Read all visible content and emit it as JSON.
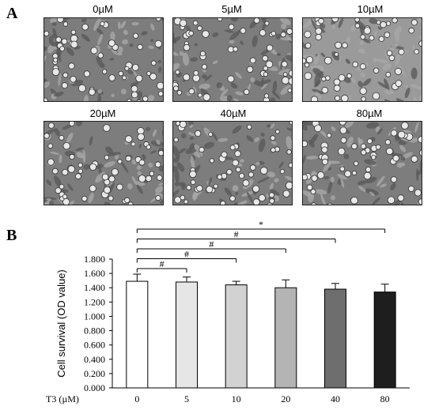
{
  "panel_a": {
    "label": "A",
    "images": [
      {
        "label": "0µM"
      },
      {
        "label": "5µM"
      },
      {
        "label": "10µM"
      },
      {
        "label": "20µM"
      },
      {
        "label": "40µM"
      },
      {
        "label": "80µM"
      }
    ]
  },
  "panel_b": {
    "label": "B"
  },
  "chart_data": {
    "type": "bar",
    "categories": [
      "0",
      "5",
      "10",
      "20",
      "40",
      "80"
    ],
    "values": [
      1.49,
      1.48,
      1.44,
      1.4,
      1.38,
      1.34
    ],
    "errors": [
      0.1,
      0.07,
      0.05,
      0.11,
      0.08,
      0.11
    ],
    "ylabel": "Cell survival (OD value)",
    "xlabel": "T3 (µM)",
    "ylim": [
      0,
      1.8
    ],
    "yticks": [
      "0.000",
      "0.200",
      "0.400",
      "0.600",
      "0.800",
      "1.000",
      "1.200",
      "1.400",
      "1.600",
      "1.800"
    ],
    "bar_fills": [
      "#ffffff",
      "#e6e6e6",
      "#d2d2d2",
      "#b4b4b4",
      "#6e6e6e",
      "#1e1e1e"
    ],
    "significance": [
      {
        "from": "0",
        "to": "5",
        "symbol": "#"
      },
      {
        "from": "0",
        "to": "10",
        "symbol": "#"
      },
      {
        "from": "0",
        "to": "20",
        "symbol": "#"
      },
      {
        "from": "0",
        "to": "40",
        "symbol": "#"
      },
      {
        "from": "0",
        "to": "80",
        "symbol": "*"
      }
    ]
  }
}
